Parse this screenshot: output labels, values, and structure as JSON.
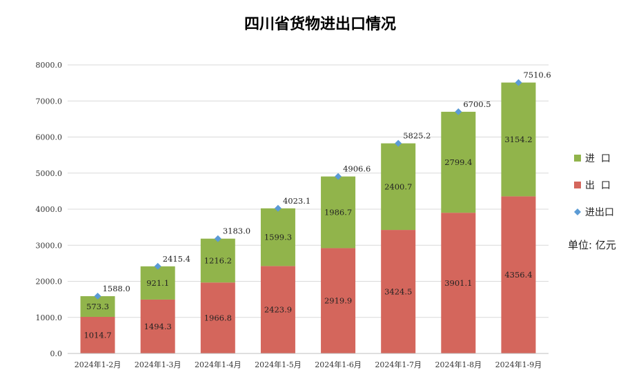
{
  "chart_data": {
    "type": "bar",
    "stacked": true,
    "title": "四川省货物进出口情况",
    "unit_label": "单位: 亿元",
    "categories": [
      "2024年1-2月",
      "2024年1-3月",
      "2024年1-4月",
      "2024年1-5月",
      "2024年1-6月",
      "2024年1-7月",
      "2024年1-8月",
      "2024年1-9月"
    ],
    "series": [
      {
        "name": "出  口",
        "color": "#d4665c",
        "values": [
          1014.7,
          1494.3,
          1966.8,
          2423.9,
          2919.9,
          3424.5,
          3901.1,
          4356.4
        ],
        "labels": [
          "1014.7",
          "1494.3",
          "1966.8",
          "2423.9",
          "2919.9",
          "3424.5",
          "3901.1",
          "4356.4"
        ]
      },
      {
        "name": "进  口",
        "color": "#91b44b",
        "values": [
          573.3,
          921.1,
          1216.2,
          1599.3,
          1986.7,
          2400.7,
          2799.4,
          3154.2
        ],
        "labels": [
          "573.3",
          "921.1",
          "1216.2",
          "1599.3",
          "1986.7",
          "2400.7",
          "2799.4",
          "3154.2"
        ]
      },
      {
        "name": "进出口",
        "type": "marker",
        "color": "#5b9bd5",
        "values": [
          1588.0,
          2415.4,
          3183.0,
          4023.1,
          4906.6,
          5825.2,
          6700.5,
          7510.6
        ],
        "labels": [
          "1588.0",
          "2415.4",
          "3183.0",
          "4023.1",
          "4906.6",
          "5825.2",
          "6700.5",
          "7510.6"
        ]
      }
    ],
    "legend_order": [
      "进  口",
      "出  口",
      "进出口"
    ],
    "yticks": [
      "0.0",
      "1000.0",
      "2000.0",
      "3000.0",
      "4000.0",
      "5000.0",
      "6000.0",
      "7000.0",
      "8000.0"
    ],
    "ylim": [
      0,
      8000
    ],
    "grid": true,
    "legend_position": "right"
  }
}
